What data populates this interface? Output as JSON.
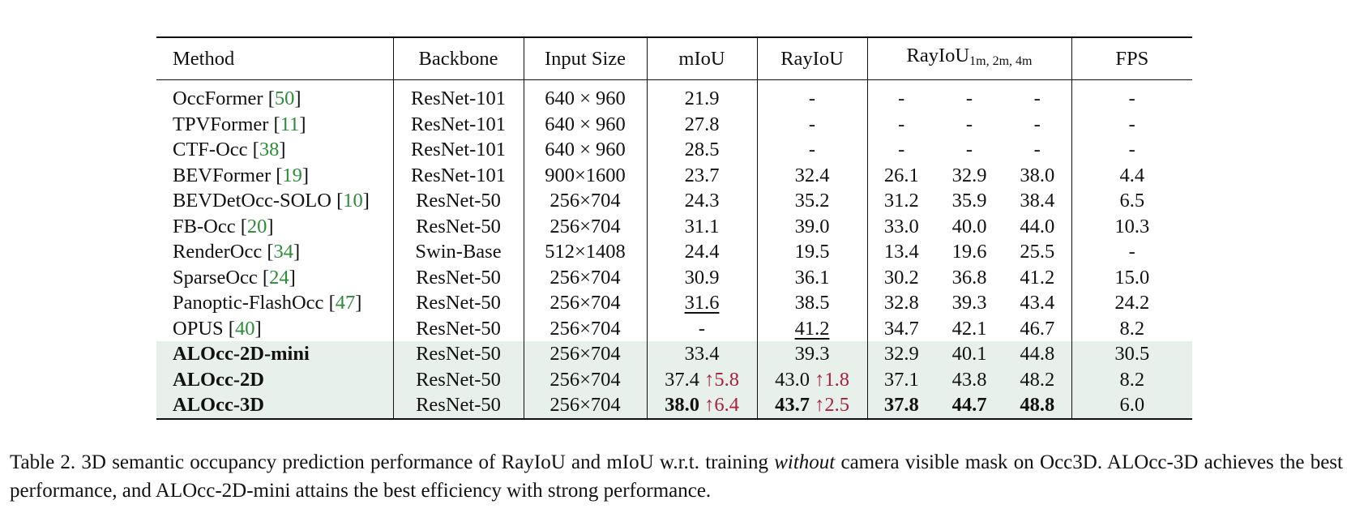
{
  "table": {
    "headers": {
      "method": "Method",
      "backbone": "Backbone",
      "input_size": "Input Size",
      "miou": "mIoU",
      "rayiou": "RayIoU",
      "rayiou_multi_main": "RayIoU",
      "rayiou_multi_sub": "1m, 2m, 4m",
      "fps": "FPS"
    },
    "rows": [
      {
        "name": "OccFormer",
        "cite": "50",
        "backbone": "ResNet-101",
        "input_size": "640 × 960",
        "miou": "21.9",
        "rayiou": "-",
        "r1": "-",
        "r2": "-",
        "r4": "-",
        "fps": "-"
      },
      {
        "name": "TPVFormer",
        "cite": "11",
        "backbone": "ResNet-101",
        "input_size": "640 × 960",
        "miou": "27.8",
        "rayiou": "-",
        "r1": "-",
        "r2": "-",
        "r4": "-",
        "fps": "-"
      },
      {
        "name": "CTF-Occ",
        "cite": "38",
        "backbone": "ResNet-101",
        "input_size": "640 × 960",
        "miou": "28.5",
        "rayiou": "-",
        "r1": "-",
        "r2": "-",
        "r4": "-",
        "fps": "-"
      },
      {
        "name": "BEVFormer",
        "cite": "19",
        "backbone": "ResNet-101",
        "input_size": "900×1600",
        "miou": "23.7",
        "rayiou": "32.4",
        "r1": "26.1",
        "r2": "32.9",
        "r4": "38.0",
        "fps": "4.4"
      },
      {
        "name": "BEVDetOcc-SOLO",
        "cite": "10",
        "backbone": "ResNet-50",
        "input_size": "256×704",
        "miou": "24.3",
        "rayiou": "35.2",
        "r1": "31.2",
        "r2": "35.9",
        "r4": "38.4",
        "fps": "6.5"
      },
      {
        "name": "FB-Occ",
        "cite": "20",
        "backbone": "ResNet-50",
        "input_size": "256×704",
        "miou": "31.1",
        "rayiou": "39.0",
        "r1": "33.0",
        "r2": "40.0",
        "r4": "44.0",
        "fps": "10.3"
      },
      {
        "name": "RenderOcc",
        "cite": "34",
        "backbone": "Swin-Base",
        "input_size": "512×1408",
        "miou": "24.4",
        "rayiou": "19.5",
        "r1": "13.4",
        "r2": "19.6",
        "r4": "25.5",
        "fps": "-"
      },
      {
        "name": "SparseOcc",
        "cite": "24",
        "backbone": "ResNet-50",
        "input_size": "256×704",
        "miou": "30.9",
        "rayiou": "36.1",
        "r1": "30.2",
        "r2": "36.8",
        "r4": "41.2",
        "fps": "15.0"
      },
      {
        "name": "Panoptic-FlashOcc",
        "cite": "47",
        "backbone": "ResNet-50",
        "input_size": "256×704",
        "miou": "31.6",
        "rayiou": "38.5",
        "r1": "32.8",
        "r2": "39.3",
        "r4": "43.4",
        "fps": "24.2"
      },
      {
        "name": "OPUS",
        "cite": "40",
        "backbone": "ResNet-50",
        "input_size": "256×704",
        "miou": "-",
        "rayiou": "41.2",
        "r1": "34.7",
        "r2": "42.1",
        "r4": "46.7",
        "fps": "8.2"
      },
      {
        "name": "ALOcc-2D-mini",
        "cite": "",
        "backbone": "ResNet-50",
        "input_size": "256×704",
        "miou": "33.4",
        "rayiou": "39.3",
        "r1": "32.9",
        "r2": "40.1",
        "r4": "44.8",
        "fps": "30.5"
      },
      {
        "name": "ALOcc-2D",
        "cite": "",
        "backbone": "ResNet-50",
        "input_size": "256×704",
        "miou": "37.4",
        "miou_gain": "↑5.8",
        "rayiou": "43.0",
        "rayiou_gain": "↑1.8",
        "r1": "37.1",
        "r2": "43.8",
        "r4": "48.2",
        "fps": "8.2"
      },
      {
        "name": "ALOcc-3D",
        "cite": "",
        "backbone": "ResNet-50",
        "input_size": "256×704",
        "miou": "38.0",
        "miou_gain": "↑6.4",
        "rayiou": "43.7",
        "rayiou_gain": "↑2.5",
        "r1": "37.8",
        "r2": "44.7",
        "r4": "48.8",
        "fps": "6.0"
      }
    ]
  },
  "caption": {
    "p1": "Table 2.  3D semantic occupancy prediction performance of RayIoU and mIoU w.r.t. training ",
    "em": "without",
    "p2": " camera visible mask on Occ3D. ALOcc-3D achieves the best performance, and ALOcc-2D-mini attains the best efficiency with strong performance."
  },
  "colors": {
    "citation": "#2e8b3a",
    "gain": "#a8203a",
    "highlight_rows": "#e8f0ec"
  }
}
